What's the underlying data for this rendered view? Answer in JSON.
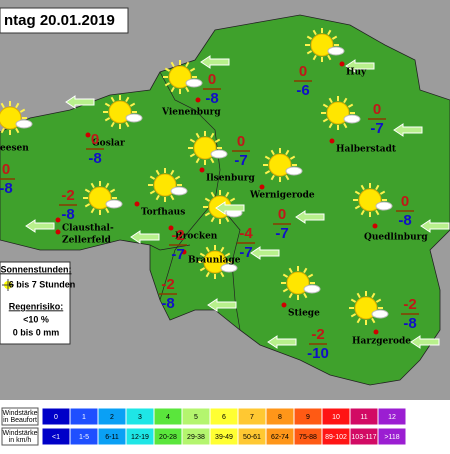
{
  "header": {
    "title": "ntag 20.01.2019"
  },
  "places": [
    "Vienenburg",
    "Huy",
    "Goslar",
    "eesen",
    "Halberstadt",
    "Ilsenburg",
    "Wernigerode",
    "Torfhaus",
    "Clausthal-",
    "Zellerfeld",
    "Brocken",
    "Quedlinburg",
    "Braunlage",
    "Stiege",
    "Harzgerode"
  ],
  "temperatures": [
    {
      "max": 0,
      "min": -8
    },
    {
      "max": 0,
      "min": -6
    },
    {
      "max": 0,
      "min": -8
    },
    {
      "max": 0,
      "min": -8
    },
    {
      "max": 0,
      "min": -7
    },
    {
      "max": 0,
      "min": -7
    },
    {
      "max": -2,
      "min": -8
    },
    {
      "max": 0,
      "min": -7
    },
    {
      "max": -2,
      "min": -7
    },
    {
      "max": -4,
      "min": -7
    },
    {
      "max": 0,
      "min": -8
    },
    {
      "max": -2,
      "min": -8
    },
    {
      "max": -2,
      "min": -8
    },
    {
      "max": -2,
      "min": -10
    }
  ],
  "info_box": {
    "sun_title": "Sonnenstunden:",
    "sun_value": "6 bis 7 Stunden",
    "rain_title": "Regenrisiko:",
    "rain_percent": "<10 %",
    "rain_amount": "0 bis 0 mm"
  },
  "wind_scale": {
    "beaufort_label": [
      "Windstärke",
      "in Beaufort"
    ],
    "beaufort": [
      0,
      1,
      2,
      3,
      4,
      5,
      6,
      7,
      8,
      9,
      10,
      11,
      12
    ],
    "kmh_label": [
      "Windstärke",
      "in km/h"
    ],
    "kmh": [
      "<1",
      "1-5",
      "6-11",
      "12-19",
      "20-28",
      "29-38",
      "39-49",
      "50-61",
      "62-74",
      "75-88",
      "89-102",
      "103-117",
      ">118"
    ]
  }
}
